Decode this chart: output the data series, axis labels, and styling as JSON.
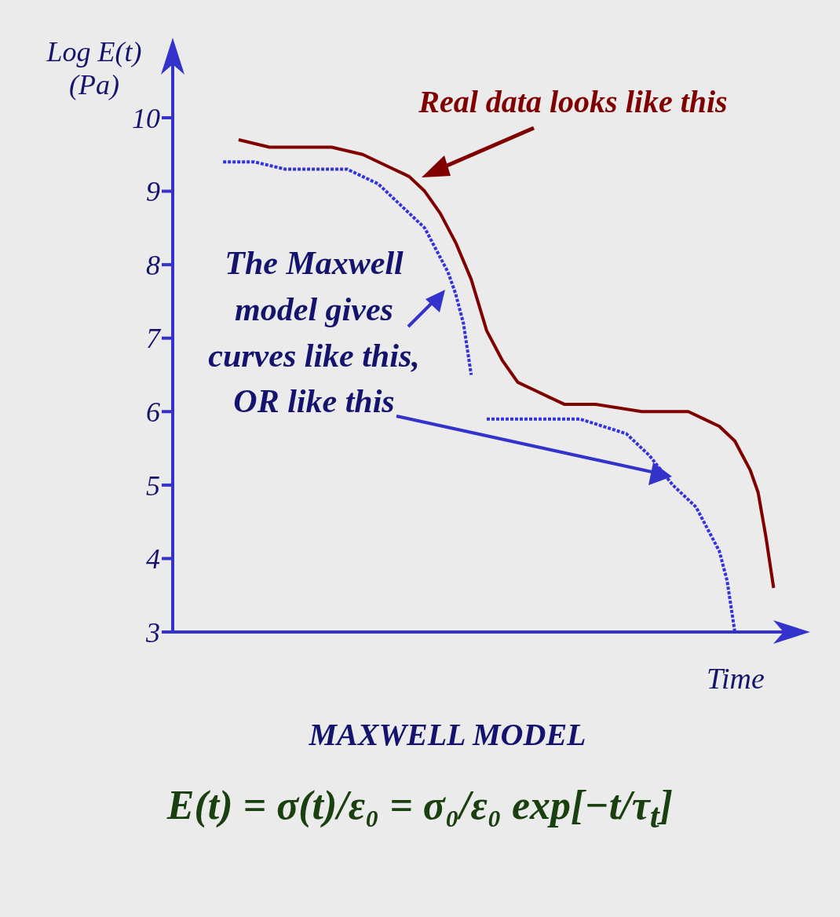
{
  "chart_data": {
    "type": "line",
    "xlabel": "Time",
    "ylabel": "Log E(t) (Pa)",
    "categories": [
      null,
      null,
      null,
      null,
      null,
      null,
      null,
      null,
      null,
      null,
      null,
      null,
      null,
      null,
      null,
      null,
      null,
      null,
      null,
      null,
      null,
      null,
      null,
      null,
      null,
      null,
      null,
      null,
      null,
      null,
      null,
      null,
      null,
      null,
      null,
      null,
      null,
      null,
      null,
      null,
      null,
      null,
      null,
      null,
      null,
      null,
      null,
      null,
      null,
      null,
      null,
      null,
      null,
      null,
      null,
      null,
      null,
      null,
      null,
      null,
      null,
      null,
      null,
      null,
      null,
      null,
      null,
      null,
      null,
      null,
      null,
      null,
      null,
      null,
      null,
      null,
      null,
      null,
      null,
      null,
      null
    ],
    "series": [
      {
        "color": "#800000",
        "line_style": "solid",
        "values": [
          null,
          null,
          null,
          null,
          null,
          null,
          null,
          null,
          9.7,
          null,
          null,
          null,
          9.6,
          null,
          null,
          null,
          9.6,
          null,
          null,
          null,
          9.6,
          null,
          null,
          null,
          9.5,
          null,
          null,
          null,
          9.3,
          null,
          9.2,
          null,
          9.0,
          null,
          8.7,
          null,
          8.3,
          null,
          7.8,
          null,
          7.1,
          null,
          6.7,
          null,
          6.4,
          null,
          6.3,
          null,
          6.2,
          null,
          6.1,
          null,
          null,
          null,
          6.1,
          null,
          null,
          null,
          null,
          null,
          6.0,
          null,
          null,
          null,
          null,
          null,
          6.0,
          null,
          5.9,
          null,
          5.8,
          null,
          5.6,
          null,
          5.2,
          4.9,
          4.3,
          3.6,
          null,
          null,
          null
        ]
      },
      {
        "color": "#3333dd",
        "line_style": "dotted",
        "values": [
          null,
          null,
          null,
          null,
          null,
          null,
          9.4,
          null,
          null,
          null,
          9.4,
          null,
          null,
          null,
          9.3,
          null,
          null,
          null,
          9.3,
          null,
          null,
          null,
          9.3,
          null,
          9.2,
          null,
          9.1,
          null,
          8.9,
          null,
          8.7,
          null,
          8.5,
          null,
          8.1,
          7.9,
          7.6,
          7.2,
          6.5,
          null,
          null,
          null,
          null,
          null,
          null,
          null,
          null,
          null,
          null,
          null,
          null,
          null,
          null,
          null,
          null,
          null,
          null,
          null,
          null,
          null,
          null,
          null,
          null,
          null,
          null,
          null,
          null,
          null,
          null,
          null,
          null,
          null,
          null,
          null,
          null,
          null,
          null,
          null,
          null,
          null,
          null
        ]
      },
      {
        "color": "#3333dd",
        "line_style": "dotted",
        "values": [
          null,
          null,
          null,
          null,
          null,
          null,
          null,
          null,
          null,
          null,
          null,
          null,
          null,
          null,
          null,
          null,
          null,
          null,
          null,
          null,
          null,
          null,
          null,
          null,
          null,
          null,
          null,
          null,
          null,
          null,
          null,
          null,
          null,
          null,
          null,
          null,
          null,
          null,
          null,
          null,
          5.9,
          null,
          null,
          null,
          5.9,
          null,
          null,
          null,
          5.9,
          null,
          null,
          null,
          5.9,
          null,
          null,
          5.8,
          null,
          null,
          5.7,
          null,
          null,
          5.4,
          null,
          null,
          5.0,
          null,
          null,
          4.7,
          null,
          4.3,
          4.1,
          3.7,
          3.0,
          null,
          null,
          null,
          null,
          null,
          null,
          null,
          null
        ]
      }
    ],
    "ylim": [
      3,
      10
    ],
    "yticks": [
      3,
      4,
      5,
      6,
      7,
      8,
      9,
      10
    ],
    "tick_labels": "y",
    "annotations": [
      "Real data looks like this",
      "The Maxwell model gives curves like this, OR like this",
      "MAXWELL MODEL",
      "E(t) = σ(t)/ε₀ = σ₀/ε₀ exp[−t/τ$_{t}$]"
    ]
  }
}
